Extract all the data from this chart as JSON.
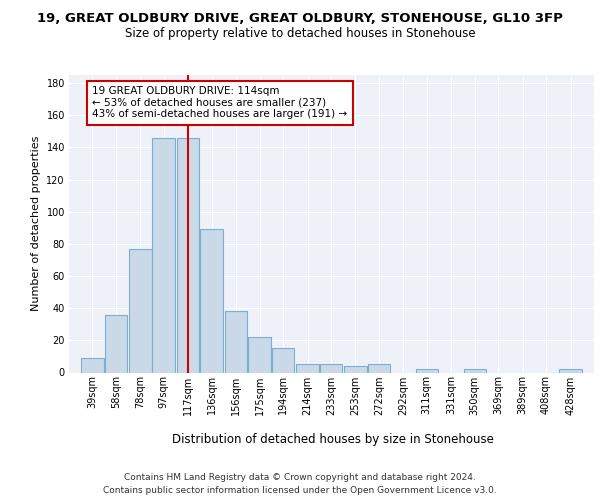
{
  "title1": "19, GREAT OLDBURY DRIVE, GREAT OLDBURY, STONEHOUSE, GL10 3FP",
  "title2": "Size of property relative to detached houses in Stonehouse",
  "xlabel": "Distribution of detached houses by size in Stonehouse",
  "ylabel": "Number of detached properties",
  "bar_categories": [
    "39sqm",
    "58sqm",
    "78sqm",
    "97sqm",
    "117sqm",
    "136sqm",
    "156sqm",
    "175sqm",
    "194sqm",
    "214sqm",
    "233sqm",
    "253sqm",
    "272sqm",
    "292sqm",
    "311sqm",
    "331sqm",
    "350sqm",
    "369sqm",
    "389sqm",
    "408sqm",
    "428sqm"
  ],
  "bar_values": [
    9,
    36,
    77,
    146,
    146,
    89,
    38,
    22,
    15,
    5,
    5,
    4,
    5,
    0,
    2,
    0,
    2,
    0,
    0,
    0,
    2
  ],
  "bar_color": "#c9d9e8",
  "bar_edge_color": "#7bafd4",
  "bin_width": 19,
  "ylim": [
    0,
    185
  ],
  "yticks": [
    0,
    20,
    40,
    60,
    80,
    100,
    120,
    140,
    160,
    180
  ],
  "annotation_box_text": "19 GREAT OLDBURY DRIVE: 114sqm\n← 53% of detached houses are smaller (237)\n43% of semi-detached houses are larger (191) →",
  "vline_color": "#cc0000",
  "vline_x": 117,
  "footer1": "Contains HM Land Registry data © Crown copyright and database right 2024.",
  "footer2": "Contains public sector information licensed under the Open Government Licence v3.0.",
  "background_color": "#eef2f8",
  "grid_color": "#ffffff",
  "title1_fontsize": 9.5,
  "title2_fontsize": 8.5,
  "xlabel_fontsize": 8.5,
  "ylabel_fontsize": 8,
  "tick_fontsize": 7,
  "annotation_fontsize": 7.5,
  "footer_fontsize": 6.5
}
